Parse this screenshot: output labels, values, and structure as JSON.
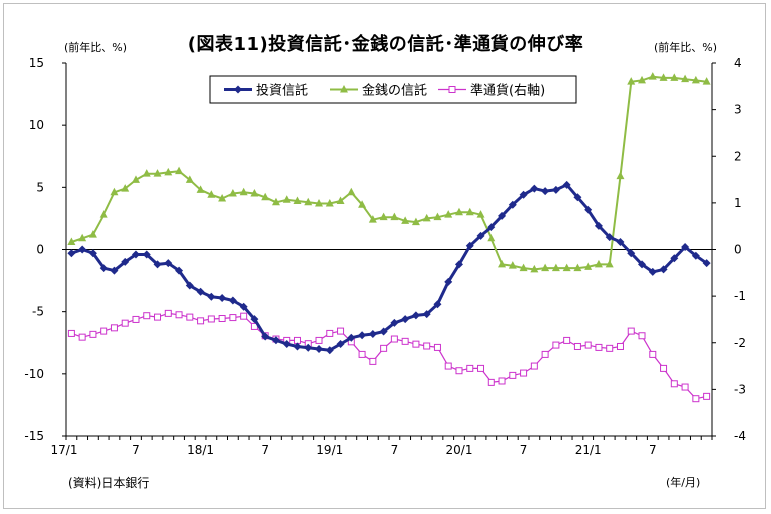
{
  "title": "(図表11)投資信託･金銭の信託･準通貨の伸び率",
  "left_unit": "(前年比、%)",
  "right_unit": "(前年比、%)",
  "source": "(資料)日本銀行",
  "x_unit": "(年/月)",
  "colors": {
    "toushin": "#1f2a8c",
    "kinsen": "#8fbc45",
    "juntsuka": "#cc33cc",
    "axis_left": "#000000",
    "axis_right": "#000000"
  },
  "chart_data": {
    "type": "line",
    "x": [
      "17/1",
      "17/2",
      "17/3",
      "17/4",
      "17/5",
      "17/6",
      "17/7",
      "17/8",
      "17/9",
      "17/10",
      "17/11",
      "17/12",
      "18/1",
      "18/2",
      "18/3",
      "18/4",
      "18/5",
      "18/6",
      "18/7",
      "18/8",
      "18/9",
      "18/10",
      "18/11",
      "18/12",
      "19/1",
      "19/2",
      "19/3",
      "19/4",
      "19/5",
      "19/6",
      "19/7",
      "19/8",
      "19/9",
      "19/10",
      "19/11",
      "19/12",
      "20/1",
      "20/2",
      "20/3",
      "20/4",
      "20/5",
      "20/6",
      "20/7",
      "20/8",
      "20/9",
      "20/10",
      "20/11",
      "20/12",
      "21/1",
      "21/2",
      "21/3",
      "21/4",
      "21/5",
      "21/6",
      "21/7",
      "21/8",
      "21/9",
      "21/10",
      "21/11",
      "21/12"
    ],
    "x_tick_labels": [
      "17/1",
      "7",
      "18/1",
      "7",
      "19/1",
      "7",
      "20/1",
      "7",
      "21/1",
      "7"
    ],
    "left_axis": {
      "ylim": [
        -15,
        15
      ],
      "ticks": [
        15,
        10,
        5,
        0,
        -5,
        -10,
        -15
      ]
    },
    "right_axis": {
      "ylim": [
        -4,
        4
      ],
      "ticks": [
        4,
        3,
        2,
        1,
        0,
        -1,
        -2,
        -3,
        -4
      ]
    },
    "series": [
      {
        "name": "投資信託",
        "axis": "left",
        "marker": "diamond",
        "values": [
          -0.3,
          0.0,
          -0.3,
          -1.5,
          -1.7,
          -1.0,
          -0.4,
          -0.4,
          -1.2,
          -1.1,
          -1.7,
          -2.9,
          -3.4,
          -3.8,
          -3.9,
          -4.1,
          -4.6,
          -5.6,
          -7.0,
          -7.3,
          -7.6,
          -7.8,
          -7.9,
          -8.0,
          -8.1,
          -7.6,
          -7.1,
          -6.9,
          -6.8,
          -6.6,
          -5.9,
          -5.6,
          -5.3,
          -5.2,
          -4.4,
          -2.6,
          -1.2,
          0.3,
          1.1,
          1.8,
          2.7,
          3.6,
          4.4,
          4.9,
          4.7,
          4.8,
          5.2,
          4.2,
          3.2,
          1.9,
          1.0,
          0.6,
          -0.3,
          -1.2,
          -1.8,
          -1.6,
          -0.7,
          0.2,
          -0.5,
          -1.1
        ]
      },
      {
        "name": "金銭の信託",
        "axis": "left",
        "marker": "triangle",
        "values": [
          0.6,
          0.9,
          1.2,
          2.8,
          4.6,
          4.9,
          5.6,
          6.1,
          6.1,
          6.2,
          6.3,
          5.6,
          4.8,
          4.4,
          4.1,
          4.5,
          4.6,
          4.5,
          4.2,
          3.8,
          4.0,
          3.9,
          3.8,
          3.7,
          3.7,
          3.9,
          4.6,
          3.6,
          2.4,
          2.6,
          2.6,
          2.3,
          2.2,
          2.5,
          2.6,
          2.8,
          3.0,
          3.0,
          2.8,
          0.9,
          -1.2,
          -1.3,
          -1.5,
          -1.6,
          -1.5,
          -1.5,
          -1.5,
          -1.5,
          -1.4,
          -1.2,
          -1.2,
          5.9,
          13.5,
          13.6,
          13.9,
          13.8,
          13.8,
          13.7,
          13.6,
          13.5
        ]
      },
      {
        "name": "準通貨(右軸)",
        "axis": "right",
        "marker": "square",
        "values": [
          -1.8,
          -1.88,
          -1.82,
          -1.75,
          -1.68,
          -1.58,
          -1.5,
          -1.42,
          -1.45,
          -1.37,
          -1.4,
          -1.45,
          -1.53,
          -1.49,
          -1.48,
          -1.46,
          -1.43,
          -1.65,
          -1.85,
          -1.92,
          -1.95,
          -1.95,
          -2.02,
          -1.95,
          -1.8,
          -1.75,
          -1.98,
          -2.25,
          -2.4,
          -2.12,
          -1.92,
          -1.97,
          -2.03,
          -2.07,
          -2.1,
          -2.5,
          -2.6,
          -2.55,
          -2.55,
          -2.85,
          -2.82,
          -2.7,
          -2.65,
          -2.5,
          -2.25,
          -2.05,
          -1.95,
          -2.08,
          -2.05,
          -2.1,
          -2.12,
          -2.08,
          -1.75,
          -1.85,
          -2.25,
          -2.55,
          -2.88,
          -2.95,
          -3.2,
          -3.15
        ]
      }
    ],
    "legend": {
      "placement": "top-center",
      "entries": [
        "投資信託",
        "金銭の信託",
        "準通貨(右軸)"
      ]
    }
  }
}
